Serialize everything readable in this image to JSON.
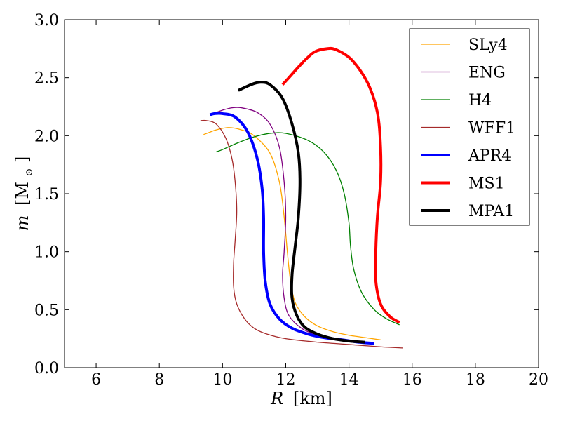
{
  "chart_data": {
    "type": "line",
    "title": "",
    "xlabel": "R [km]",
    "xlabel_parts": {
      "symbol": "R",
      "unit": "[km]"
    },
    "ylabel": "m [M☉]",
    "ylabel_parts": {
      "symbol": "m",
      "unit_open": "[M",
      "unit_sub": "⊙",
      "unit_close": "]"
    },
    "xlim": [
      5,
      20
    ],
    "ylim": [
      0,
      3.0
    ],
    "xticks": [
      6,
      8,
      10,
      12,
      14,
      16,
      18,
      20
    ],
    "xtick_labels": [
      "6",
      "8",
      "10",
      "12",
      "14",
      "16",
      "18",
      "20"
    ],
    "yticks": [
      0.0,
      0.5,
      1.0,
      1.5,
      2.0,
      2.5,
      3.0
    ],
    "ytick_labels": [
      "0.0",
      "0.5",
      "1.0",
      "1.5",
      "2.0",
      "2.5",
      "3.0"
    ],
    "grid": false,
    "legend_position": "top-right",
    "series": [
      {
        "name": "SLy4",
        "color": "#ffa500",
        "weight": "thin",
        "points": [
          [
            15.0,
            0.24
          ],
          [
            14.5,
            0.26
          ],
          [
            14.0,
            0.28
          ],
          [
            13.5,
            0.31
          ],
          [
            13.0,
            0.36
          ],
          [
            12.6,
            0.44
          ],
          [
            12.3,
            0.56
          ],
          [
            12.15,
            0.75
          ],
          [
            12.05,
            1.0
          ],
          [
            11.95,
            1.3
          ],
          [
            11.8,
            1.6
          ],
          [
            11.5,
            1.85
          ],
          [
            11.0,
            2.0
          ],
          [
            10.6,
            2.05
          ],
          [
            10.2,
            2.07
          ],
          [
            9.8,
            2.05
          ],
          [
            9.6,
            2.03
          ],
          [
            9.4,
            2.01
          ]
        ]
      },
      {
        "name": "ENG",
        "color": "#800080",
        "weight": "thin",
        "points": [
          [
            14.6,
            0.22
          ],
          [
            14.0,
            0.23
          ],
          [
            13.5,
            0.25
          ],
          [
            13.0,
            0.28
          ],
          [
            12.5,
            0.34
          ],
          [
            12.1,
            0.45
          ],
          [
            11.95,
            0.6
          ],
          [
            11.9,
            0.8
          ],
          [
            11.95,
            1.0
          ],
          [
            12.0,
            1.3
          ],
          [
            11.95,
            1.6
          ],
          [
            11.8,
            1.9
          ],
          [
            11.5,
            2.1
          ],
          [
            11.1,
            2.2
          ],
          [
            10.6,
            2.24
          ],
          [
            10.3,
            2.24
          ],
          [
            10.0,
            2.22
          ],
          [
            9.8,
            2.2
          ]
        ]
      },
      {
        "name": "H4",
        "color": "#008000",
        "weight": "thin",
        "points": [
          [
            15.6,
            0.37
          ],
          [
            15.2,
            0.42
          ],
          [
            14.8,
            0.5
          ],
          [
            14.4,
            0.65
          ],
          [
            14.15,
            0.85
          ],
          [
            14.05,
            1.05
          ],
          [
            14.0,
            1.25
          ],
          [
            13.85,
            1.5
          ],
          [
            13.6,
            1.7
          ],
          [
            13.2,
            1.86
          ],
          [
            12.7,
            1.96
          ],
          [
            12.0,
            2.02
          ],
          [
            11.5,
            2.02
          ],
          [
            11.0,
            1.99
          ],
          [
            10.5,
            1.94
          ],
          [
            10.0,
            1.88
          ],
          [
            9.8,
            1.86
          ]
        ]
      },
      {
        "name": "WFF1",
        "color": "#a52a2a",
        "weight": "thin",
        "points": [
          [
            15.7,
            0.17
          ],
          [
            15.0,
            0.18
          ],
          [
            14.0,
            0.2
          ],
          [
            13.0,
            0.22
          ],
          [
            12.0,
            0.25
          ],
          [
            11.4,
            0.29
          ],
          [
            11.0,
            0.34
          ],
          [
            10.7,
            0.42
          ],
          [
            10.45,
            0.55
          ],
          [
            10.35,
            0.7
          ],
          [
            10.35,
            0.9
          ],
          [
            10.4,
            1.1
          ],
          [
            10.45,
            1.35
          ],
          [
            10.4,
            1.6
          ],
          [
            10.3,
            1.8
          ],
          [
            10.1,
            1.98
          ],
          [
            9.8,
            2.1
          ],
          [
            9.5,
            2.13
          ],
          [
            9.3,
            2.13
          ]
        ]
      },
      {
        "name": "APR4",
        "color": "#0000ff",
        "weight": "thick",
        "points": [
          [
            14.8,
            0.21
          ],
          [
            14.3,
            0.22
          ],
          [
            13.8,
            0.24
          ],
          [
            13.2,
            0.26
          ],
          [
            12.7,
            0.29
          ],
          [
            12.2,
            0.34
          ],
          [
            11.8,
            0.42
          ],
          [
            11.5,
            0.55
          ],
          [
            11.35,
            0.75
          ],
          [
            11.3,
            1.0
          ],
          [
            11.3,
            1.3
          ],
          [
            11.25,
            1.55
          ],
          [
            11.1,
            1.8
          ],
          [
            10.8,
            2.03
          ],
          [
            10.4,
            2.16
          ],
          [
            10.0,
            2.19
          ],
          [
            9.75,
            2.19
          ],
          [
            9.6,
            2.18
          ]
        ]
      },
      {
        "name": "MS1",
        "color": "#ff0000",
        "weight": "thick",
        "points": [
          [
            15.6,
            0.39
          ],
          [
            15.3,
            0.44
          ],
          [
            15.0,
            0.55
          ],
          [
            14.85,
            0.75
          ],
          [
            14.85,
            1.0
          ],
          [
            14.9,
            1.3
          ],
          [
            15.0,
            1.6
          ],
          [
            15.0,
            1.9
          ],
          [
            14.9,
            2.2
          ],
          [
            14.6,
            2.45
          ],
          [
            14.1,
            2.65
          ],
          [
            13.6,
            2.74
          ],
          [
            13.3,
            2.75
          ],
          [
            12.9,
            2.72
          ],
          [
            12.5,
            2.62
          ],
          [
            12.1,
            2.5
          ],
          [
            11.9,
            2.44
          ]
        ]
      },
      {
        "name": "MPA1",
        "color": "#000000",
        "weight": "thick",
        "points": [
          [
            14.5,
            0.22
          ],
          [
            14.0,
            0.23
          ],
          [
            13.5,
            0.25
          ],
          [
            13.0,
            0.29
          ],
          [
            12.6,
            0.35
          ],
          [
            12.35,
            0.45
          ],
          [
            12.2,
            0.6
          ],
          [
            12.2,
            0.8
          ],
          [
            12.3,
            1.05
          ],
          [
            12.4,
            1.3
          ],
          [
            12.45,
            1.6
          ],
          [
            12.4,
            1.85
          ],
          [
            12.2,
            2.1
          ],
          [
            11.9,
            2.32
          ],
          [
            11.5,
            2.44
          ],
          [
            11.2,
            2.46
          ],
          [
            10.9,
            2.44
          ],
          [
            10.5,
            2.39
          ]
        ]
      }
    ]
  }
}
